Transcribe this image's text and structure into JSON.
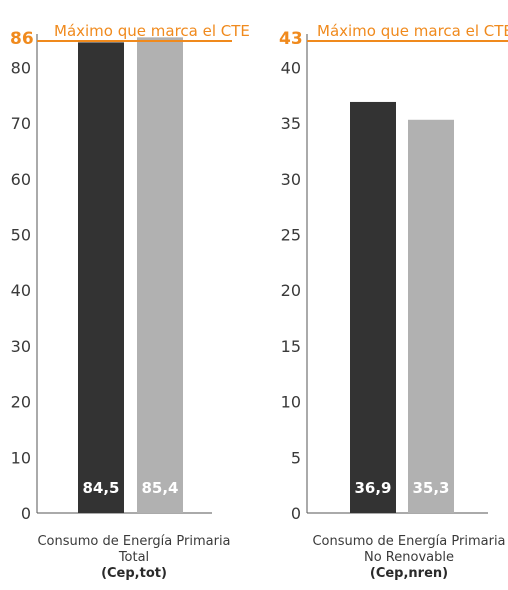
{
  "chart_data": [
    {
      "type": "bar",
      "categories": [
        "Consumo de Energía Primaria Total (Cep,tot)"
      ],
      "series": [
        {
          "values": [
            84.5
          ],
          "color": "#333333"
        },
        {
          "values": [
            85.4
          ],
          "color": "#b1b1b1"
        }
      ],
      "data_labels": [
        "84,5",
        "85,4"
      ],
      "yticks": [
        0,
        10,
        20,
        30,
        40,
        50,
        60,
        70,
        80
      ],
      "ylim": [
        0,
        86
      ],
      "limit": {
        "value": 86,
        "value_label": "86",
        "label": "Máximo que marca el CTE",
        "color": "#f08a1d"
      },
      "xlabel_lines": [
        "Consumo de Energía Primaria",
        "Total"
      ],
      "xlabel_bold": "(Cep,tot)"
    },
    {
      "type": "bar",
      "categories": [
        "Consumo de Energía Primaria No Renovable (Cep,nren)"
      ],
      "series": [
        {
          "values": [
            36.9
          ],
          "color": "#333333"
        },
        {
          "values": [
            35.3
          ],
          "color": "#b1b1b1"
        }
      ],
      "data_labels": [
        "36,9",
        "35,3"
      ],
      "yticks": [
        0,
        5,
        10,
        15,
        20,
        25,
        30,
        35,
        40
      ],
      "ylim": [
        0,
        43
      ],
      "limit": {
        "value": 43,
        "value_label": "43",
        "label": "Máximo que marca el CTE",
        "color": "#f08a1d"
      },
      "xlabel_lines": [
        "Consumo de Energía Primaria",
        "No Renovable"
      ],
      "xlabel_bold": "(Cep,nren)"
    }
  ]
}
